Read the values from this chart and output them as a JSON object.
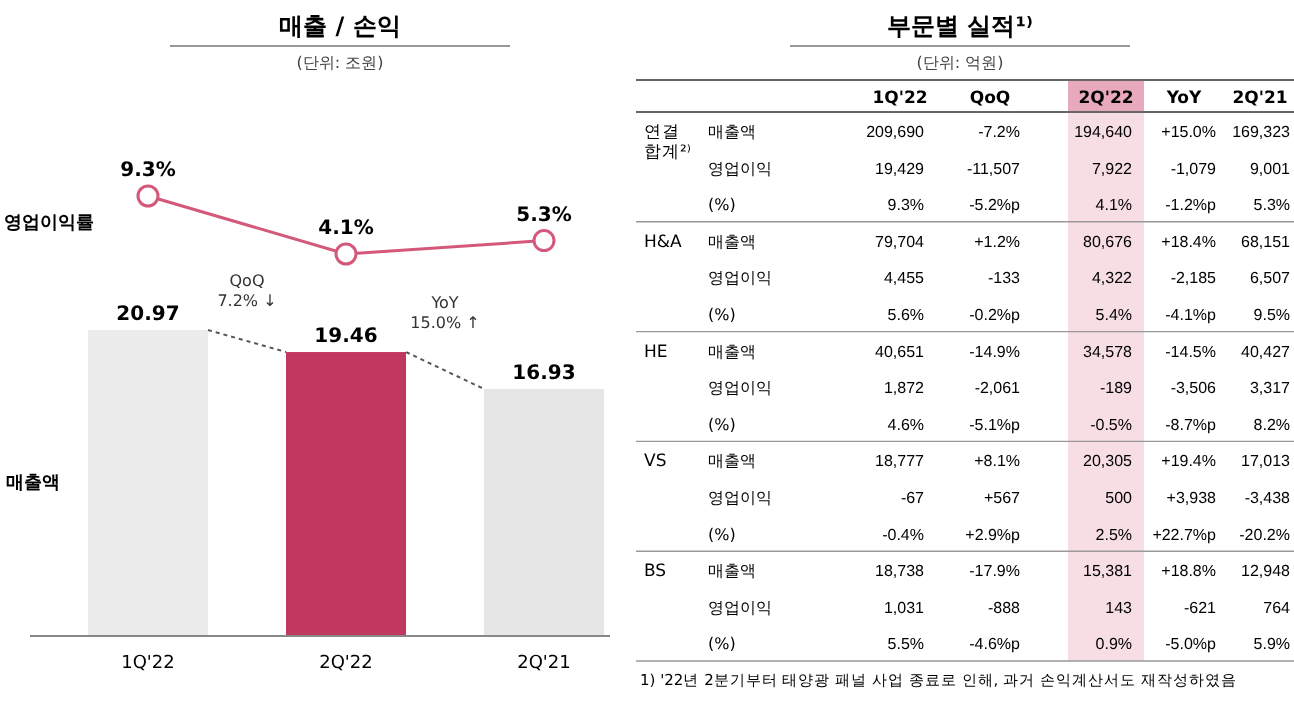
{
  "chart_data": [
    {
      "type": "line",
      "title": "매출 / 손익",
      "subtitle": "(단위: 조원)",
      "ylabel": "영업이익률",
      "marker": "circle",
      "series": [
        {
          "color": "#d4587a",
          "values": [
            9.3,
            4.1,
            5.3
          ],
          "value_labels": [
            "9.3%",
            "4.1%",
            "5.3%"
          ]
        }
      ]
    },
    {
      "type": "bar",
      "ylabel": "매출액",
      "categories": [
        "1Q'22",
        "2Q'22",
        "2Q'21"
      ],
      "values": [
        20.97,
        19.46,
        16.93
      ],
      "colors": [
        "#ececec",
        "#c2375f",
        "#e6e6e6"
      ],
      "data_labels": true,
      "annotations": [
        "QoQ 7.2% ↓",
        "YoY 15.0% ↑"
      ]
    },
    {
      "type": "other",
      "title": "부문별 실적¹⁾",
      "subtitle": "(단위: 억원)",
      "categories": [
        "1Q'22",
        "QoQ",
        "2Q'22",
        "YoY",
        "2Q'21"
      ],
      "y_categories": [
        "매출액",
        "영업이익",
        "(%)",
        "매출액",
        "영업이익",
        "(%)",
        "매출액",
        "영업이익",
        "(%)",
        "매출액",
        "영업이익",
        "(%)",
        "매출액",
        "영업이익",
        "(%)"
      ],
      "y2_categories": [
        "연결 합계²⁾",
        null,
        null,
        "H&A",
        null,
        null,
        "HE",
        null,
        null,
        "VS",
        null,
        null,
        "BS",
        null,
        null
      ],
      "cell_labels": [
        [
          "209,690",
          "-7.2%",
          "194,640",
          "+15.0%",
          "169,323"
        ],
        [
          "19,429",
          "-11,507",
          "7,922",
          "-1,079",
          "9,001"
        ],
        [
          "9.3%",
          "-5.2%p",
          "4.1%",
          "-1.2%p",
          "5.3%"
        ],
        [
          "79,704",
          "+1.2%",
          "80,676",
          "+18.4%",
          "68,151"
        ],
        [
          "4,455",
          "-133",
          "4,322",
          "-2,185",
          "6,507"
        ],
        [
          "5.6%",
          "-0.2%p",
          "5.4%",
          "-4.1%p",
          "9.5%"
        ],
        [
          "40,651",
          "-14.9%",
          "34,578",
          "-14.5%",
          "40,427"
        ],
        [
          "1,872",
          "-2,061",
          "-189",
          "-3,506",
          "3,317"
        ],
        [
          "4.6%",
          "-5.1%p",
          "-0.5%",
          "-8.7%p",
          "8.2%"
        ],
        [
          "18,777",
          "+8.1%",
          "20,305",
          "+19.4%",
          "17,013"
        ],
        [
          "-67",
          "+567",
          "500",
          "+3,938",
          "-3,438"
        ],
        [
          "-0.4%",
          "+2.9%p",
          "2.5%",
          "+22.7%p",
          "-20.2%"
        ],
        [
          "18,738",
          "-17.9%",
          "15,381",
          "+18.8%",
          "12,948"
        ],
        [
          "1,031",
          "-888",
          "143",
          "-621",
          "764"
        ],
        [
          "5.5%",
          "-4.6%p",
          "0.9%",
          "-5.0%p",
          "5.9%"
        ]
      ],
      "annotations": [
        "1) '22년 2분기부터 태양광 패널 사업 종료로 인해, 과거 손익계산서도 재작성하였음"
      ]
    }
  ]
}
